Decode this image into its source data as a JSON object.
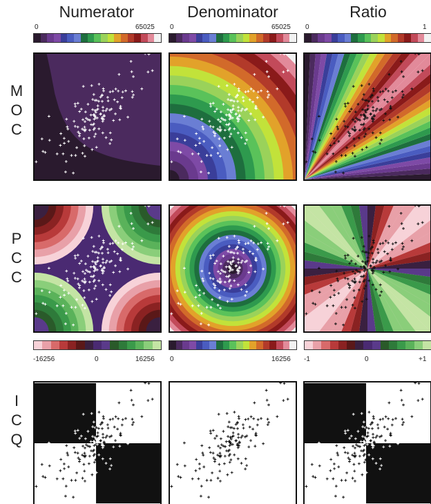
{
  "columns": [
    "Numerator",
    "Denominator",
    "Ratio"
  ],
  "rows": {
    "moc": [
      "M",
      "O",
      "C"
    ],
    "pcc": [
      "P",
      "C",
      "C"
    ],
    "icq": [
      "I",
      "C",
      "Q"
    ]
  },
  "top_scales": {
    "numerator": {
      "min": "0",
      "max": "65025"
    },
    "denominator": {
      "min": "0",
      "max": "65025"
    },
    "ratio": {
      "min": "0",
      "max": "1"
    }
  },
  "pcc_scales": {
    "numerator": {
      "min": "-16256",
      "mid": "0",
      "max": "16256"
    },
    "denominator": {
      "min": "0",
      "max": "16256"
    },
    "ratio": {
      "min": "-1",
      "mid": "0",
      "max": "+1"
    }
  },
  "colors": {
    "rainbow_scale": [
      "#2a1a2e",
      "#4b2a5e",
      "#6a3a8e",
      "#7e4aa6",
      "#3a3e9a",
      "#4a5cc0",
      "#6a7ed4",
      "#1e6e3e",
      "#2e9a4e",
      "#5ac25a",
      "#9ad25a",
      "#c2e23a",
      "#e2a22a",
      "#d26a2a",
      "#b23a2a",
      "#8a1a1a",
      "#c24a5a",
      "#e28a9a",
      "#f2f2f2"
    ],
    "diverging_scale": [
      "#f7d2d8",
      "#e8a0a8",
      "#d86a6a",
      "#b83a3a",
      "#8a2222",
      "#5a1818",
      "#3a2040",
      "#4a2a72",
      "#5a3a8a",
      "#2a5a2a",
      "#2e7a3a",
      "#3a9a4a",
      "#5ab25a",
      "#8ace7a",
      "#c4e4a4"
    ],
    "grey_scale": [
      "#111111",
      "#555555",
      "#999999",
      "#dddddd",
      "#ffffff"
    ]
  },
  "icons": {
    "scatter_point": "plus-marker"
  }
}
